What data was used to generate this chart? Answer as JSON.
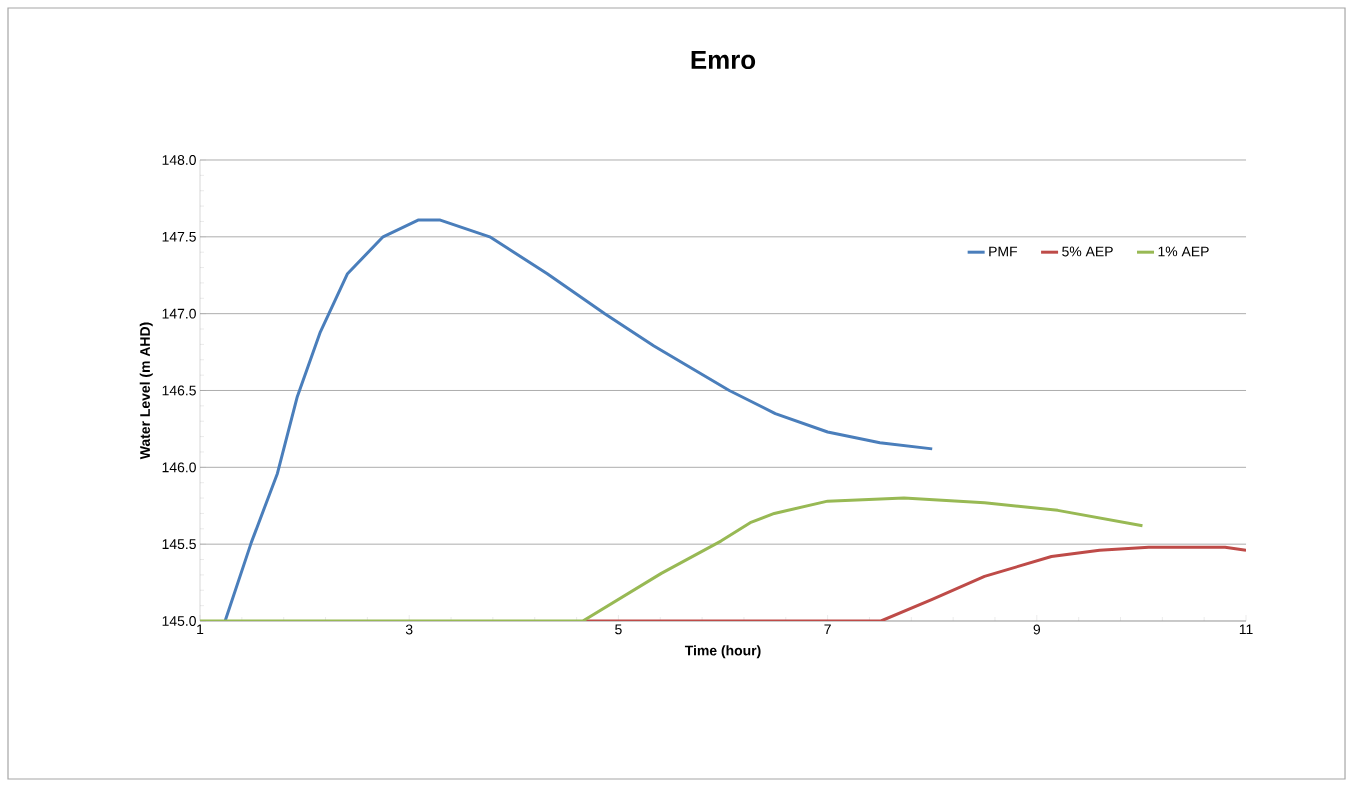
{
  "chart_data": {
    "type": "line",
    "title": "Emro",
    "xlabel": "Time (hour)",
    "ylabel": "Water Level (m AHD)",
    "xlim": [
      1,
      11
    ],
    "ylim": [
      145,
      148
    ],
    "xticks": [
      1,
      3,
      5,
      7,
      9,
      11
    ],
    "yticks": [
      {
        "value": 145,
        "label": "145.0"
      },
      {
        "value": 145.5,
        "label": "145.5"
      },
      {
        "value": 146,
        "label": "146.0"
      },
      {
        "value": 146.5,
        "label": "146.5"
      },
      {
        "value": 147,
        "label": "147.0"
      },
      {
        "value": 147.5,
        "label": "147.5"
      },
      {
        "value": 148,
        "label": "148.0"
      }
    ],
    "grid": "y",
    "legend": "top right",
    "marker": "none",
    "line_style": "solid",
    "series": [
      {
        "name": "PMF",
        "color": "#4a7ebb",
        "x": [
          1.24,
          1.49,
          1.74,
          1.93,
          2.15,
          2.41,
          2.75,
          3.09,
          3.29,
          3.77,
          4.32,
          4.87,
          5.34,
          6.06,
          6.5,
          7.0,
          7.5,
          8.0
        ],
        "values": [
          145.0,
          145.51,
          145.96,
          146.46,
          146.88,
          147.26,
          147.5,
          147.61,
          147.61,
          147.5,
          147.26,
          147.0,
          146.79,
          146.5,
          146.35,
          146.23,
          146.16,
          146.12
        ]
      },
      {
        "name": "5% AEP",
        "color": "#be4b48",
        "x": [
          4.66,
          6.0,
          7.51,
          8.0,
          8.5,
          9.14,
          9.6,
          10.07,
          10.8,
          11.0
        ],
        "values": [
          145.0,
          145.0,
          145.0,
          145.14,
          145.29,
          145.42,
          145.46,
          145.48,
          145.48,
          145.46
        ]
      },
      {
        "name": "1% AEP",
        "color": "#98b954",
        "x": [
          1.0,
          3.0,
          4.66,
          5.41,
          5.98,
          6.26,
          6.49,
          7.0,
          7.73,
          8.5,
          9.2,
          10.01
        ],
        "values": [
          145.0,
          145.0,
          145.0,
          145.31,
          145.52,
          145.64,
          145.7,
          145.78,
          145.8,
          145.77,
          145.72,
          145.62
        ]
      }
    ]
  }
}
